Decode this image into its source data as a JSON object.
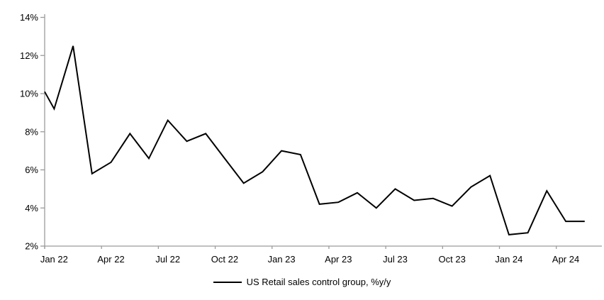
{
  "colors": {
    "series_line": "#000000",
    "axis": "#9b9b9b",
    "text": "#000000",
    "background": "#ffffff"
  },
  "legend": {
    "label": "US Retail sales control group, %y/y"
  },
  "chart_data": {
    "type": "line",
    "title": "",
    "xlabel": "",
    "ylabel": "",
    "ylim": [
      2,
      14
    ],
    "y_tick_values": [
      2,
      4,
      6,
      8,
      10,
      12,
      14
    ],
    "y_tick_labels": [
      "2%",
      "4%",
      "6%",
      "8%",
      "10%",
      "12%",
      "14%"
    ],
    "x_tick_labels": [
      "Jan 22",
      "Apr 22",
      "Jul 22",
      "Oct 22",
      "Jan 23",
      "Apr 23",
      "Jul 23",
      "Oct 23",
      "Jan 24",
      "Apr 24"
    ],
    "grid": false,
    "legend_position": "bottom-center",
    "clipped_start_value_at_axis": 10.1,
    "categories": [
      "Jan 22",
      "Feb 22",
      "Mar 22",
      "Apr 22",
      "May 22",
      "Jun 22",
      "Jul 22",
      "Aug 22",
      "Sep 22",
      "Oct 22",
      "Nov 22",
      "Dec 22",
      "Jan 23",
      "Feb 23",
      "Mar 23",
      "Apr 23",
      "May 23",
      "Jun 23",
      "Jul 23",
      "Aug 23",
      "Sep 23",
      "Oct 23",
      "Nov 23",
      "Dec 23",
      "Jan 24",
      "Feb 24",
      "Mar 24",
      "Apr 24",
      "May 24"
    ],
    "series": [
      {
        "name": "US Retail sales control group, %y/y",
        "color": "#000000",
        "values": [
          9.2,
          12.5,
          5.8,
          6.4,
          7.9,
          6.6,
          8.6,
          7.5,
          7.9,
          6.6,
          5.3,
          5.9,
          7.0,
          6.8,
          4.2,
          4.3,
          4.8,
          4.0,
          5.0,
          4.4,
          4.5,
          4.1,
          5.1,
          5.7,
          2.6,
          2.7,
          4.9,
          3.3,
          3.3
        ]
      }
    ]
  }
}
